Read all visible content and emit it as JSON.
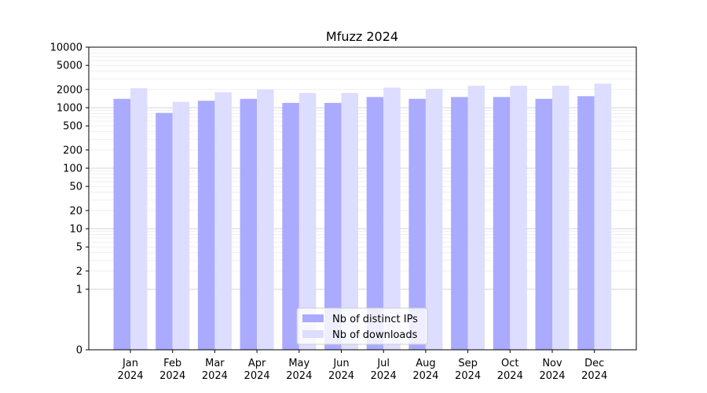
{
  "chart_data": {
    "type": "bar",
    "title": "Mfuzz 2024",
    "xlabel": "",
    "ylabel": "",
    "y_scale": "symlog",
    "ylim": [
      0,
      10000
    ],
    "y_ticks": [
      0,
      1,
      2,
      5,
      10,
      20,
      50,
      100,
      200,
      500,
      1000,
      2000,
      5000,
      10000
    ],
    "y_tick_labels": [
      "0",
      "1",
      "2",
      "5",
      "10",
      "20",
      "50",
      "100",
      "200",
      "500",
      "1000",
      "2000",
      "5000",
      "10000"
    ],
    "categories": [
      [
        "Jan",
        "2024"
      ],
      [
        "Feb",
        "2024"
      ],
      [
        "Mar",
        "2024"
      ],
      [
        "Apr",
        "2024"
      ],
      [
        "May",
        "2024"
      ],
      [
        "Jun",
        "2024"
      ],
      [
        "Jul",
        "2024"
      ],
      [
        "Aug",
        "2024"
      ],
      [
        "Sep",
        "2024"
      ],
      [
        "Oct",
        "2024"
      ],
      [
        "Nov",
        "2024"
      ],
      [
        "Dec",
        "2024"
      ]
    ],
    "series": [
      {
        "name": "Nb of distinct IPs",
        "color": "#aaaaff",
        "values": [
          1400,
          820,
          1300,
          1400,
          1200,
          1200,
          1500,
          1400,
          1500,
          1500,
          1400,
          1550
        ]
      },
      {
        "name": "Nb of downloads",
        "color": "#ddddff",
        "values": [
          2100,
          1250,
          1800,
          2000,
          1750,
          1750,
          2150,
          2050,
          2300,
          2300,
          2300,
          2500
        ]
      }
    ],
    "grid": true,
    "legend_position": "bottom-center"
  }
}
